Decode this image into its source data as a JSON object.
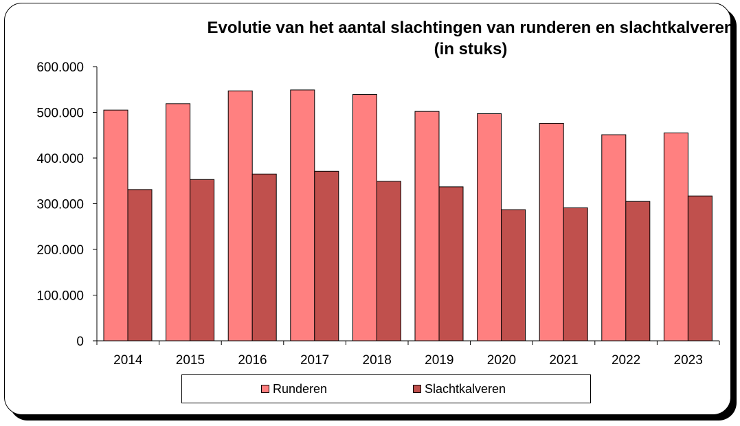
{
  "chart_data": {
    "type": "bar",
    "title": "Evolutie van het aantal slachtingen van runderen en slachtkalveren",
    "subtitle": "(in stuks)",
    "categories": [
      "2014",
      "2015",
      "2016",
      "2017",
      "2018",
      "2019",
      "2020",
      "2021",
      "2022",
      "2023"
    ],
    "series": [
      {
        "name": "Runderen",
        "color": "#ff8080",
        "values": [
          505000,
          519000,
          547000,
          549000,
          539000,
          502000,
          497000,
          476000,
          451000,
          455000
        ]
      },
      {
        "name": "Slachtkalveren",
        "color": "#c0504d",
        "values": [
          331000,
          353000,
          365000,
          371000,
          349000,
          337000,
          287000,
          291000,
          305000,
          317000
        ]
      }
    ],
    "ylim": [
      0,
      600000
    ],
    "yticks": [
      0,
      100000,
      200000,
      300000,
      400000,
      500000,
      600000
    ],
    "ytick_labels": [
      "0",
      "100.000",
      "200.000",
      "300.000",
      "400.000",
      "500.000",
      "600.000"
    ],
    "grid": false,
    "legend_position": "bottom"
  }
}
